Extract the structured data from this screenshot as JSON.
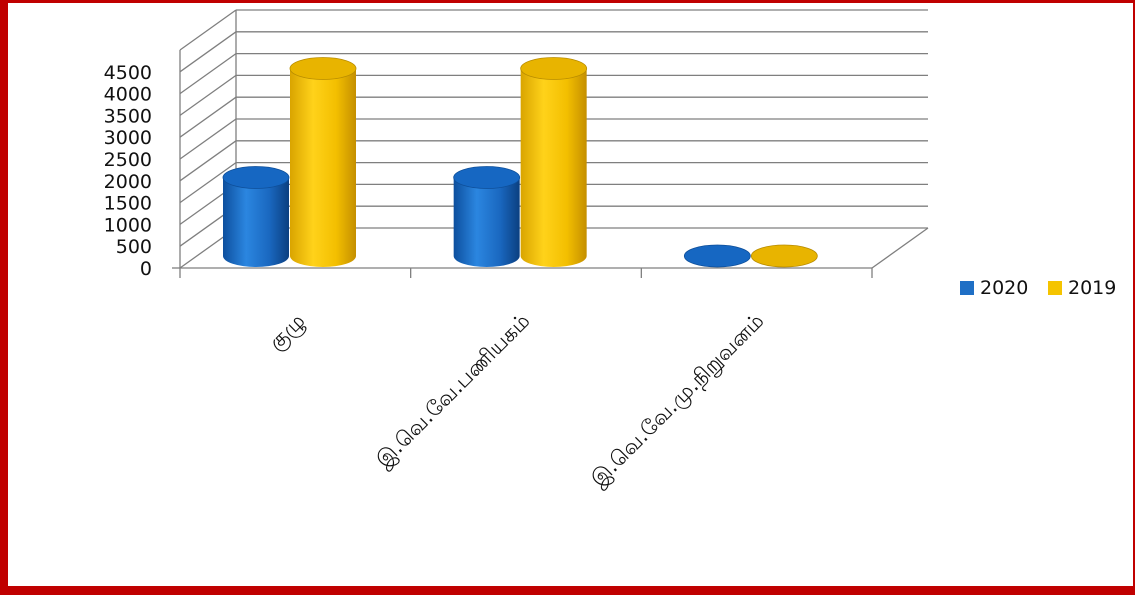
{
  "chart_data": {
    "type": "bar",
    "categories": [
      "குழு",
      "இ.வெ.வே.பணியகம்",
      "இ.வெ.வே.மு.நிறுவனம்"
    ],
    "series": [
      {
        "name": "2020",
        "values": [
          1800,
          1800,
          0
        ],
        "color": "#1f6fc5"
      },
      {
        "name": "2019",
        "values": [
          4300,
          4300,
          0
        ],
        "color": "#f5c400"
      }
    ],
    "ylim": [
      0,
      4500
    ],
    "yticks": [
      "0",
      "500",
      "1000",
      "1500",
      "2000",
      "2500",
      "3000",
      "3500",
      "4000",
      "4500"
    ],
    "grid": true,
    "legend_position": "right",
    "style": "3d-cylinder"
  }
}
